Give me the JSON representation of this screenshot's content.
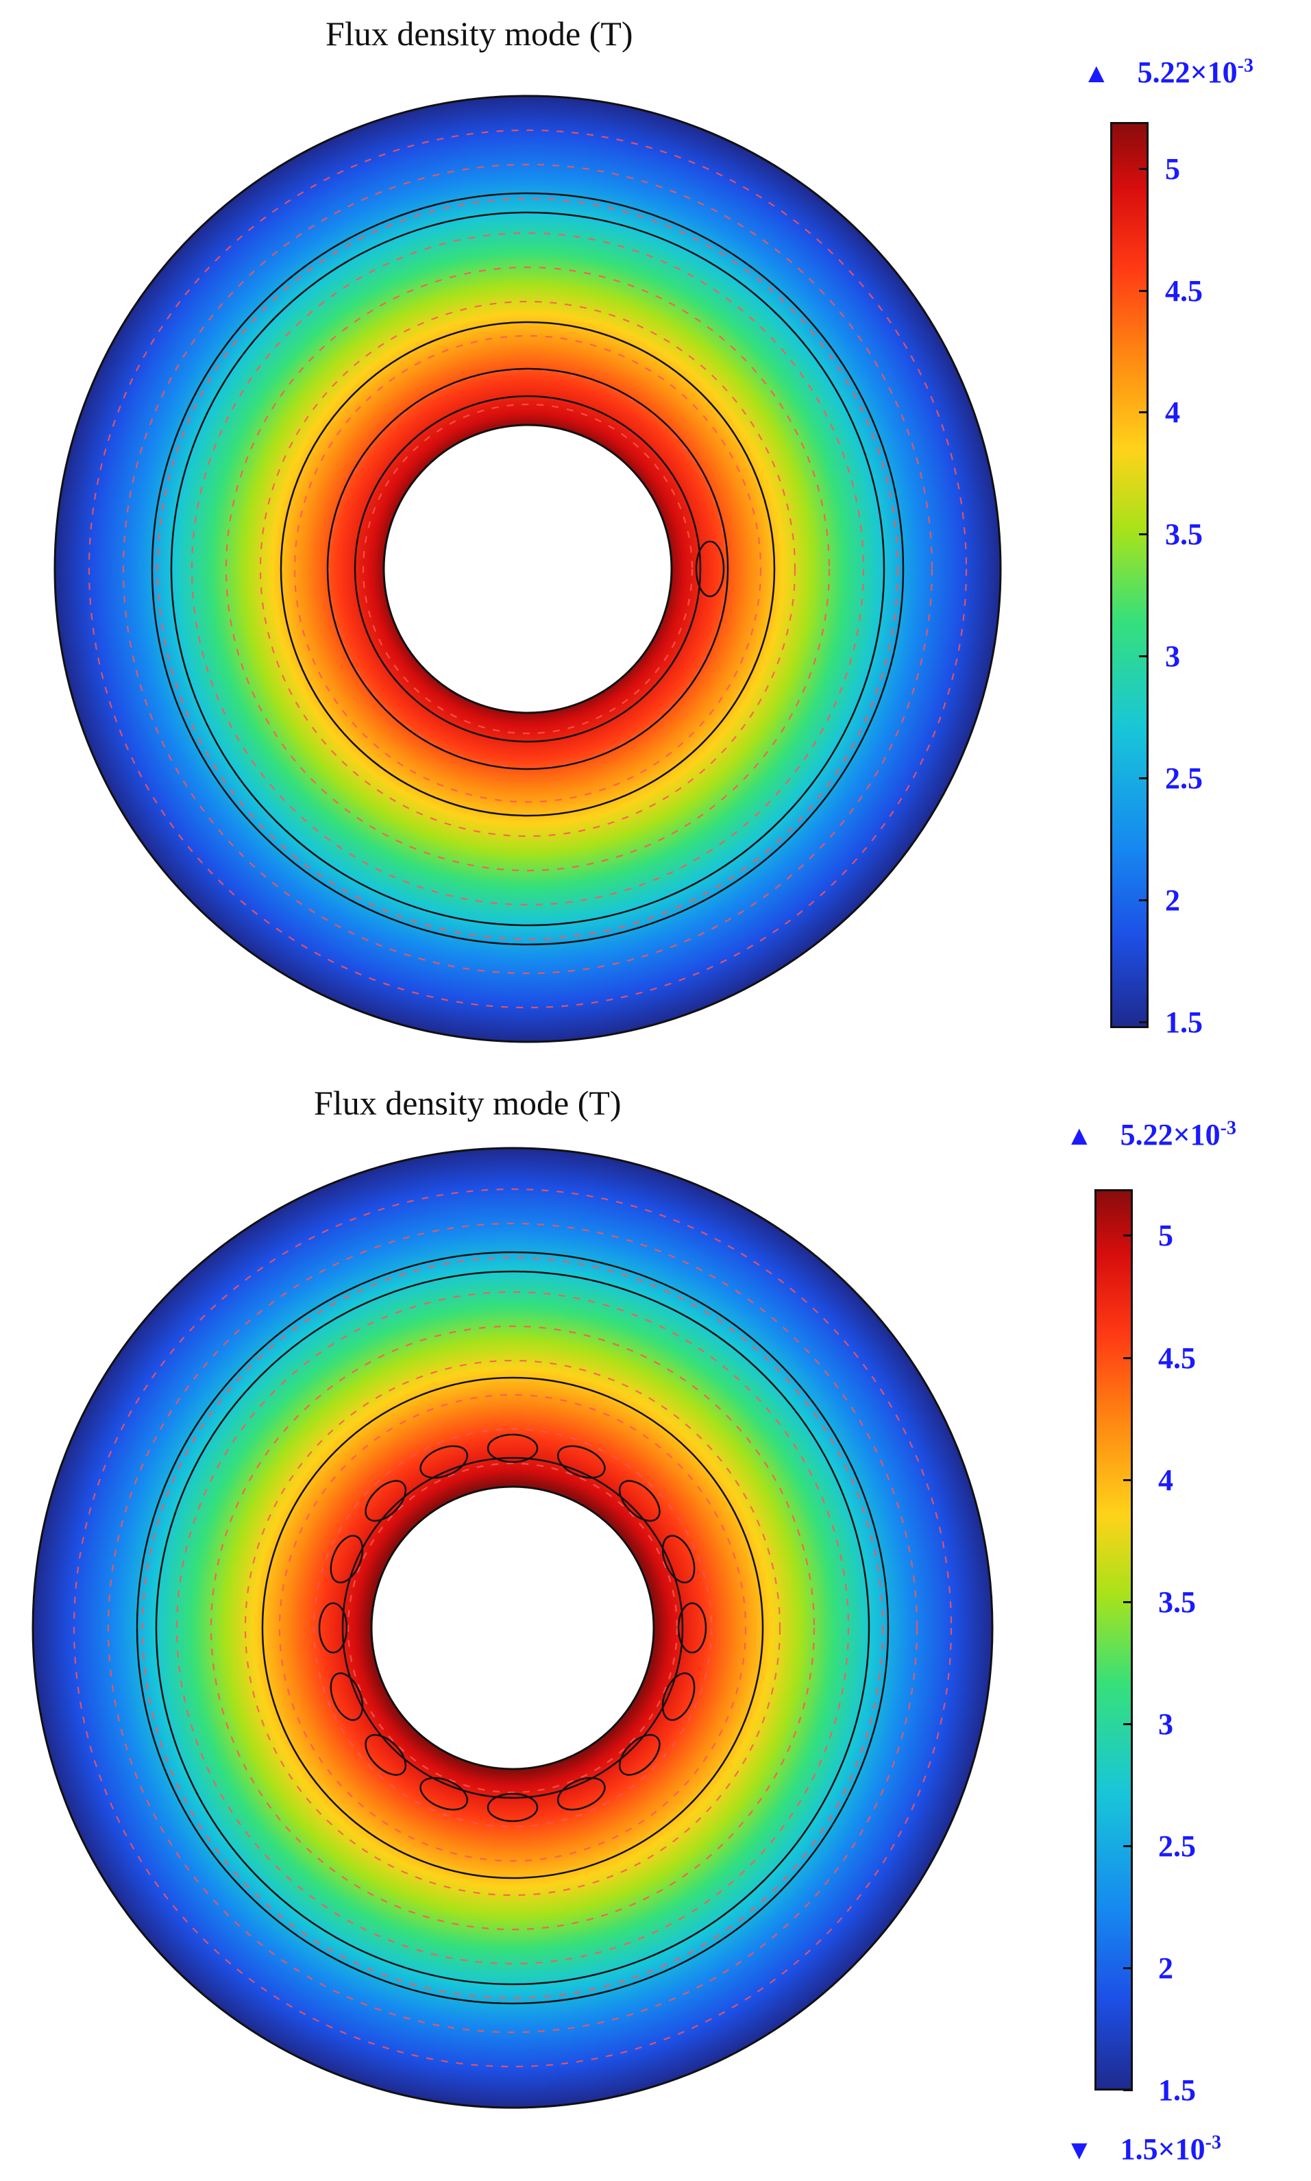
{
  "panels": [
    {
      "title": "Flux density mode (T)",
      "max": {
        "mantissa": "5.22",
        "exp": "-3"
      },
      "colorbar": {
        "range": [
          1.5,
          5.22
        ],
        "ticks": [
          "5",
          "4.5",
          "4",
          "3.5",
          "3",
          "2.5",
          "2",
          "1.5"
        ]
      },
      "colormap": "rainbow",
      "conductor_count": 1
    },
    {
      "title": "Flux density mode (T)",
      "max": {
        "mantissa": "5.22",
        "exp": "-3"
      },
      "min": {
        "mantissa": "1.5",
        "exp": "-3"
      },
      "colorbar": {
        "range": [
          1.5,
          5.22
        ],
        "ticks": [
          "5",
          "4.5",
          "4",
          "3.5",
          "3",
          "2.5",
          "2",
          "1.5"
        ]
      },
      "colormap": "rainbow",
      "conductor_count": 16
    }
  ],
  "colors": {
    "label_blue": "#1a1aff",
    "arrow_red": "#ff5555"
  }
}
